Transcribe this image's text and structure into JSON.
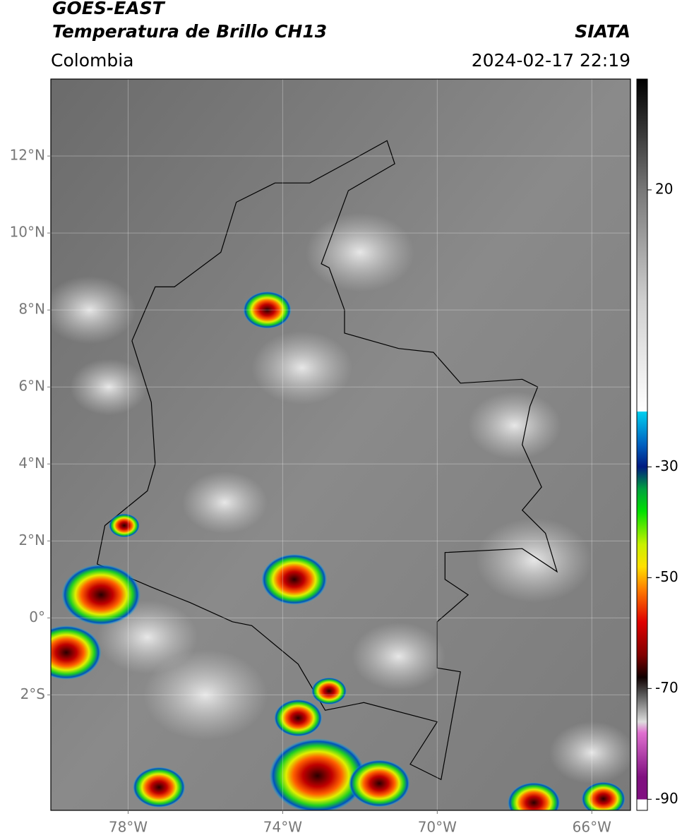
{
  "header": {
    "title": "GOES-EAST",
    "subtitle": "Temperatura de Brillo CH13",
    "source": "SIATA",
    "region": "Colombia",
    "datetime": "2024-02-17 22:19"
  },
  "map": {
    "xlim": [
      -80,
      -65
    ],
    "ylim": [
      -5,
      14
    ],
    "xticks": [
      {
        "value": -78,
        "label": "78°W"
      },
      {
        "value": -74,
        "label": "74°W"
      },
      {
        "value": -70,
        "label": "70°W"
      },
      {
        "value": -66,
        "label": "66°W"
      }
    ],
    "yticks": [
      {
        "value": 12,
        "label": "12°N"
      },
      {
        "value": 10,
        "label": "10°N"
      },
      {
        "value": 8,
        "label": "8°N"
      },
      {
        "value": 6,
        "label": "6°N"
      },
      {
        "value": 4,
        "label": "4°N"
      },
      {
        "value": 2,
        "label": "2°N"
      },
      {
        "value": 0,
        "label": "0°"
      },
      {
        "value": -2,
        "label": "2°S"
      }
    ],
    "grid": true
  },
  "colorbar": {
    "lim": [
      -92,
      40
    ],
    "ticks": [
      20,
      -30,
      -50,
      -70,
      -90
    ],
    "stops": [
      {
        "value": 40,
        "color": "#000000"
      },
      {
        "value": 30,
        "color": "#3a3a3a"
      },
      {
        "value": 20,
        "color": "#777777"
      },
      {
        "value": 0,
        "color": "#cfcfcf"
      },
      {
        "value": -20,
        "color": "#ffffff"
      },
      {
        "value": -20.01,
        "color": "#00d0f0"
      },
      {
        "value": -26,
        "color": "#0060c0"
      },
      {
        "value": -30,
        "color": "#001a80"
      },
      {
        "value": -34,
        "color": "#00a040"
      },
      {
        "value": -38,
        "color": "#00e000"
      },
      {
        "value": -44,
        "color": "#c8f000"
      },
      {
        "value": -48,
        "color": "#ffe000"
      },
      {
        "value": -52,
        "color": "#ff8000"
      },
      {
        "value": -58,
        "color": "#e00000"
      },
      {
        "value": -64,
        "color": "#800000"
      },
      {
        "value": -68,
        "color": "#100000"
      },
      {
        "value": -71,
        "color": "#555555"
      },
      {
        "value": -76,
        "color": "#dddddd"
      },
      {
        "value": -78,
        "color": "#e070d0"
      },
      {
        "value": -86,
        "color": "#801080"
      },
      {
        "value": -89.99,
        "color": "#801080"
      },
      {
        "value": -90,
        "color": "#ffffff"
      }
    ]
  }
}
